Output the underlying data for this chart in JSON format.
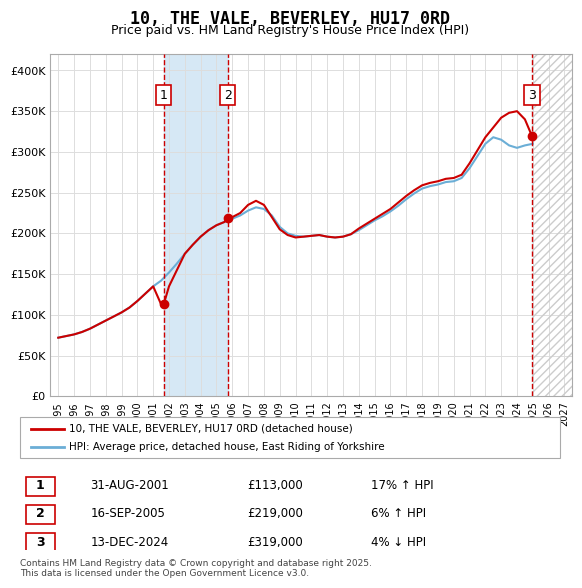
{
  "title": "10, THE VALE, BEVERLEY, HU17 0RD",
  "subtitle": "Price paid vs. HM Land Registry's House Price Index (HPI)",
  "legend_line1": "10, THE VALE, BEVERLEY, HU17 0RD (detached house)",
  "legend_line2": "HPI: Average price, detached house, East Riding of Yorkshire",
  "footnote": "Contains HM Land Registry data © Crown copyright and database right 2025.\nThis data is licensed under the Open Government Licence v3.0.",
  "transactions": [
    {
      "label": "1",
      "date": "31-AUG-2001",
      "price": 113000,
      "hpi_pct": "17% ↑ HPI",
      "x": 2001.667
    },
    {
      "label": "2",
      "date": "16-SEP-2005",
      "price": 219000,
      "hpi_pct": "6% ↑ HPI",
      "x": 2005.708
    },
    {
      "label": "3",
      "date": "13-DEC-2024",
      "price": 319000,
      "hpi_pct": "4% ↓ HPI",
      "x": 2024.958
    }
  ],
  "vline1_x": 2001.667,
  "vline2_x": 2005.708,
  "vline3_x": 2024.958,
  "shade_x1": 2001.667,
  "shade_x2": 2005.708,
  "ylim": [
    0,
    420000
  ],
  "xlim": [
    1994.5,
    2027.5
  ],
  "yticks": [
    0,
    50000,
    100000,
    150000,
    200000,
    250000,
    300000,
    350000,
    400000
  ],
  "ytick_labels": [
    "£0",
    "£50K",
    "£100K",
    "£150K",
    "£200K",
    "£250K",
    "£300K",
    "£350K",
    "£400K"
  ],
  "xtick_years": [
    1995,
    1996,
    1997,
    1998,
    1999,
    2000,
    2001,
    2002,
    2003,
    2004,
    2005,
    2006,
    2007,
    2008,
    2009,
    2010,
    2011,
    2012,
    2013,
    2014,
    2015,
    2016,
    2017,
    2018,
    2019,
    2020,
    2021,
    2022,
    2023,
    2024,
    2025,
    2026,
    2027
  ],
  "hpi_color": "#6baed6",
  "price_color": "#cc0000",
  "shade_color": "#d6e8f5",
  "vline_color": "#cc0000",
  "hpi_x": [
    1995.0,
    1995.5,
    1996.0,
    1996.5,
    1997.0,
    1997.5,
    1998.0,
    1998.5,
    1999.0,
    1999.5,
    2000.0,
    2000.5,
    2001.0,
    2001.5,
    2002.0,
    2002.5,
    2003.0,
    2003.5,
    2004.0,
    2004.5,
    2005.0,
    2005.5,
    2006.0,
    2006.5,
    2007.0,
    2007.5,
    2008.0,
    2008.5,
    2009.0,
    2009.5,
    2010.0,
    2010.5,
    2011.0,
    2011.5,
    2012.0,
    2012.5,
    2013.0,
    2013.5,
    2014.0,
    2014.5,
    2015.0,
    2015.5,
    2016.0,
    2016.5,
    2017.0,
    2017.5,
    2018.0,
    2018.5,
    2019.0,
    2019.5,
    2020.0,
    2020.5,
    2021.0,
    2021.5,
    2022.0,
    2022.5,
    2023.0,
    2023.5,
    2024.0,
    2024.5,
    2025.0
  ],
  "hpi_y": [
    72000,
    74000,
    76000,
    79000,
    83000,
    88000,
    93000,
    98000,
    103000,
    109000,
    117000,
    126000,
    135000,
    142000,
    152000,
    163000,
    175000,
    186000,
    196000,
    204000,
    210000,
    214000,
    218000,
    222000,
    228000,
    232000,
    230000,
    222000,
    208000,
    200000,
    197000,
    196000,
    197000,
    198000,
    196000,
    195000,
    196000,
    199000,
    204000,
    210000,
    216000,
    221000,
    227000,
    234000,
    242000,
    249000,
    255000,
    258000,
    260000,
    263000,
    264000,
    268000,
    280000,
    295000,
    310000,
    318000,
    315000,
    308000,
    305000,
    308000,
    310000
  ],
  "price_x": [
    1995.0,
    1995.5,
    1996.0,
    1996.5,
    1997.0,
    1997.5,
    1998.0,
    1998.5,
    1999.0,
    1999.5,
    2000.0,
    2000.5,
    2001.0,
    2001.5,
    2001.667,
    2002.0,
    2002.5,
    2003.0,
    2003.5,
    2004.0,
    2004.5,
    2005.0,
    2005.5,
    2005.708,
    2006.0,
    2006.5,
    2007.0,
    2007.5,
    2008.0,
    2008.5,
    2009.0,
    2009.5,
    2010.0,
    2010.5,
    2011.0,
    2011.5,
    2012.0,
    2012.5,
    2013.0,
    2013.5,
    2014.0,
    2014.5,
    2015.0,
    2015.5,
    2016.0,
    2016.5,
    2017.0,
    2017.5,
    2018.0,
    2018.5,
    2019.0,
    2019.5,
    2020.0,
    2020.5,
    2021.0,
    2021.5,
    2022.0,
    2022.5,
    2023.0,
    2023.5,
    2024.0,
    2024.5,
    2024.958
  ],
  "price_y": [
    72000,
    74000,
    76000,
    79000,
    83000,
    88000,
    93000,
    98000,
    103000,
    109000,
    117000,
    126000,
    135000,
    113000,
    113000,
    135000,
    155000,
    175000,
    186000,
    196000,
    204000,
    210000,
    214000,
    219000,
    220000,
    225000,
    235000,
    240000,
    235000,
    220000,
    205000,
    198000,
    195000,
    196000,
    197000,
    198000,
    196000,
    195000,
    196000,
    199000,
    206000,
    212000,
    218000,
    224000,
    230000,
    238000,
    246000,
    253000,
    259000,
    262000,
    264000,
    267000,
    268000,
    272000,
    286000,
    302000,
    318000,
    330000,
    342000,
    348000,
    350000,
    340000,
    319000
  ]
}
